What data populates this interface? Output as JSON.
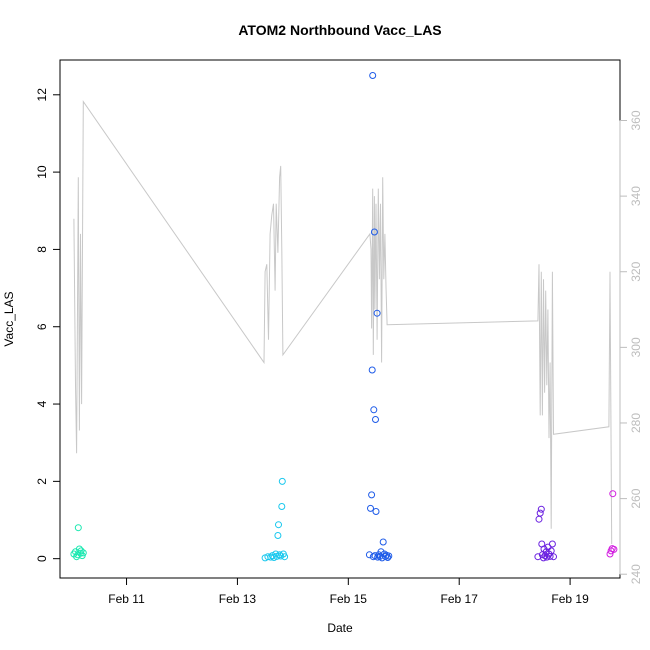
{
  "chart_data": {
    "type": "scatter",
    "title": "ATOM2 Northbound Vacc_LAS",
    "xlabel": "Date",
    "ylabel": "Vacc_LAS",
    "x_unit": "days (February, fractional day of month)",
    "xlim": [
      9.8,
      19.9
    ],
    "ylim": [
      -0.5,
      12.9
    ],
    "x_ticks": [
      {
        "value": 11,
        "label": "Feb 11"
      },
      {
        "value": 13,
        "label": "Feb 13"
      },
      {
        "value": 15,
        "label": "Feb 15"
      },
      {
        "value": 17,
        "label": "Feb 17"
      },
      {
        "value": 19,
        "label": "Feb 19"
      }
    ],
    "y_ticks": [
      0,
      2,
      4,
      6,
      8,
      10,
      12
    ],
    "secondary_axis": {
      "side": "right",
      "color": "#c8c8c8",
      "ylim": [
        239,
        376
      ],
      "ticks": [
        240,
        260,
        280,
        300,
        320,
        340,
        360
      ]
    },
    "grid": false,
    "legend": "none",
    "points": [
      {
        "x": 10.05,
        "y": 0.12,
        "color": "#1ae8b0"
      },
      {
        "x": 10.08,
        "y": 0.18,
        "color": "#1ae8b0"
      },
      {
        "x": 10.1,
        "y": 0.05,
        "color": "#1ae8b0"
      },
      {
        "x": 10.12,
        "y": 0.1,
        "color": "#1ae8b0"
      },
      {
        "x": 10.13,
        "y": 0.8,
        "color": "#1ae8b0"
      },
      {
        "x": 10.15,
        "y": 0.25,
        "color": "#1ae8b0"
      },
      {
        "x": 10.17,
        "y": 0.14,
        "color": "#1ae8b0"
      },
      {
        "x": 10.18,
        "y": 0.2,
        "color": "#1ae8b0"
      },
      {
        "x": 10.2,
        "y": 0.08,
        "color": "#1ae8b0"
      },
      {
        "x": 10.22,
        "y": 0.15,
        "color": "#1ae8b0"
      },
      {
        "x": 13.5,
        "y": 0.02,
        "color": "#1ac8ee"
      },
      {
        "x": 13.55,
        "y": 0.05,
        "color": "#1ac8ee"
      },
      {
        "x": 13.6,
        "y": 0.04,
        "color": "#1ac8ee"
      },
      {
        "x": 13.63,
        "y": 0.08,
        "color": "#1ac8ee"
      },
      {
        "x": 13.66,
        "y": 0.03,
        "color": "#1ac8ee"
      },
      {
        "x": 13.69,
        "y": 0.12,
        "color": "#1ac8ee"
      },
      {
        "x": 13.71,
        "y": 0.06,
        "color": "#1ac8ee"
      },
      {
        "x": 13.73,
        "y": 0.6,
        "color": "#1ac8ee"
      },
      {
        "x": 13.74,
        "y": 0.88,
        "color": "#1ac8ee"
      },
      {
        "x": 13.76,
        "y": 0.1,
        "color": "#1ac8ee"
      },
      {
        "x": 13.78,
        "y": 0.07,
        "color": "#1ac8ee"
      },
      {
        "x": 13.8,
        "y": 1.35,
        "color": "#1ac8ee"
      },
      {
        "x": 13.81,
        "y": 2.0,
        "color": "#1ac8ee"
      },
      {
        "x": 13.83,
        "y": 0.12,
        "color": "#1ac8ee"
      },
      {
        "x": 13.85,
        "y": 0.05,
        "color": "#1ac8ee"
      },
      {
        "x": 15.38,
        "y": 0.1,
        "color": "#1e5be8"
      },
      {
        "x": 15.4,
        "y": 1.3,
        "color": "#1e5be8"
      },
      {
        "x": 15.42,
        "y": 1.65,
        "color": "#1e5be8"
      },
      {
        "x": 15.43,
        "y": 4.88,
        "color": "#1e5be8"
      },
      {
        "x": 15.44,
        "y": 12.5,
        "color": "#1e5be8"
      },
      {
        "x": 15.46,
        "y": 3.85,
        "color": "#1e5be8"
      },
      {
        "x": 15.47,
        "y": 8.45,
        "color": "#1e5be8"
      },
      {
        "x": 15.49,
        "y": 3.6,
        "color": "#1e5be8"
      },
      {
        "x": 15.5,
        "y": 1.22,
        "color": "#1e5be8"
      },
      {
        "x": 15.52,
        "y": 6.35,
        "color": "#1e5be8"
      },
      {
        "x": 15.45,
        "y": 0.05,
        "color": "#1e5be8"
      },
      {
        "x": 15.48,
        "y": 0.08,
        "color": "#1e5be8"
      },
      {
        "x": 15.53,
        "y": 0.04,
        "color": "#1e5be8"
      },
      {
        "x": 15.55,
        "y": 0.1,
        "color": "#1e5be8"
      },
      {
        "x": 15.57,
        "y": 0.06,
        "color": "#1e5be8"
      },
      {
        "x": 15.59,
        "y": 0.18,
        "color": "#1e5be8"
      },
      {
        "x": 15.61,
        "y": 0.02,
        "color": "#1e5be8"
      },
      {
        "x": 15.63,
        "y": 0.43,
        "color": "#1e5be8"
      },
      {
        "x": 15.65,
        "y": 0.12,
        "color": "#1e5be8"
      },
      {
        "x": 15.67,
        "y": 0.06,
        "color": "#1e5be8"
      },
      {
        "x": 15.69,
        "y": 0.09,
        "color": "#1e5be8"
      },
      {
        "x": 15.71,
        "y": 0.03,
        "color": "#1e5be8"
      },
      {
        "x": 15.73,
        "y": 0.07,
        "color": "#1e5be8"
      },
      {
        "x": 18.42,
        "y": 0.05,
        "color": "#6a20e0"
      },
      {
        "x": 18.44,
        "y": 1.02,
        "color": "#6a20e0"
      },
      {
        "x": 18.46,
        "y": 1.18,
        "color": "#6a20e0"
      },
      {
        "x": 18.48,
        "y": 1.28,
        "color": "#6a20e0"
      },
      {
        "x": 18.49,
        "y": 0.38,
        "color": "#6a20e0"
      },
      {
        "x": 18.5,
        "y": 0.1,
        "color": "#6a20e0"
      },
      {
        "x": 18.52,
        "y": 0.02,
        "color": "#6a20e0"
      },
      {
        "x": 18.53,
        "y": 0.25,
        "color": "#6a20e0"
      },
      {
        "x": 18.55,
        "y": 0.08,
        "color": "#6a20e0"
      },
      {
        "x": 18.57,
        "y": 0.18,
        "color": "#6a20e0"
      },
      {
        "x": 18.58,
        "y": 0.04,
        "color": "#6a20e0"
      },
      {
        "x": 18.6,
        "y": 0.3,
        "color": "#6a20e0"
      },
      {
        "x": 18.62,
        "y": 0.12,
        "color": "#6a20e0"
      },
      {
        "x": 18.64,
        "y": 0.06,
        "color": "#6a20e0"
      },
      {
        "x": 18.66,
        "y": 0.2,
        "color": "#6a20e0"
      },
      {
        "x": 18.68,
        "y": 0.38,
        "color": "#6a20e0"
      },
      {
        "x": 18.7,
        "y": 0.05,
        "color": "#6a20e0"
      },
      {
        "x": 19.72,
        "y": 0.12,
        "color": "#d21ee0"
      },
      {
        "x": 19.74,
        "y": 0.2,
        "color": "#d21ee0"
      },
      {
        "x": 19.76,
        "y": 0.26,
        "color": "#d21ee0"
      },
      {
        "x": 19.77,
        "y": 1.68,
        "color": "#d21ee0"
      },
      {
        "x": 19.79,
        "y": 0.24,
        "color": "#d21ee0"
      }
    ],
    "secondary_line": {
      "color": "#c8c8c8",
      "points": [
        [
          10.05,
          334
        ],
        [
          10.08,
          290
        ],
        [
          10.1,
          272
        ],
        [
          10.13,
          345
        ],
        [
          10.15,
          278
        ],
        [
          10.17,
          330
        ],
        [
          10.19,
          285
        ],
        [
          10.22,
          365
        ],
        [
          13.48,
          296
        ],
        [
          13.5,
          320
        ],
        [
          13.53,
          322
        ],
        [
          13.56,
          302
        ],
        [
          13.59,
          330
        ],
        [
          13.62,
          335
        ],
        [
          13.65,
          338
        ],
        [
          13.68,
          315
        ],
        [
          13.7,
          338
        ],
        [
          13.73,
          325
        ],
        [
          13.76,
          345
        ],
        [
          13.78,
          348
        ],
        [
          13.8,
          326
        ],
        [
          13.82,
          298
        ],
        [
          15.39,
          330
        ],
        [
          15.41,
          326
        ],
        [
          15.42,
          305
        ],
        [
          15.44,
          342
        ],
        [
          15.45,
          298
        ],
        [
          15.47,
          340
        ],
        [
          15.48,
          310
        ],
        [
          15.5,
          338
        ],
        [
          15.52,
          302
        ],
        [
          15.54,
          342
        ],
        [
          15.56,
          318
        ],
        [
          15.58,
          338
        ],
        [
          15.6,
          296
        ],
        [
          15.62,
          345
        ],
        [
          15.64,
          318
        ],
        [
          15.66,
          330
        ],
        [
          15.68,
          316
        ],
        [
          15.7,
          306
        ],
        [
          18.42,
          307
        ],
        [
          18.44,
          322
        ],
        [
          18.46,
          282
        ],
        [
          18.48,
          320
        ],
        [
          18.5,
          282
        ],
        [
          18.52,
          318
        ],
        [
          18.54,
          288
        ],
        [
          18.56,
          315
        ],
        [
          18.58,
          290
        ],
        [
          18.6,
          310
        ],
        [
          18.62,
          276
        ],
        [
          18.64,
          296
        ],
        [
          18.66,
          252
        ],
        [
          18.68,
          320
        ],
        [
          18.7,
          277
        ],
        [
          19.7,
          279
        ],
        [
          19.72,
          320
        ],
        [
          19.75,
          248
        ]
      ]
    }
  }
}
